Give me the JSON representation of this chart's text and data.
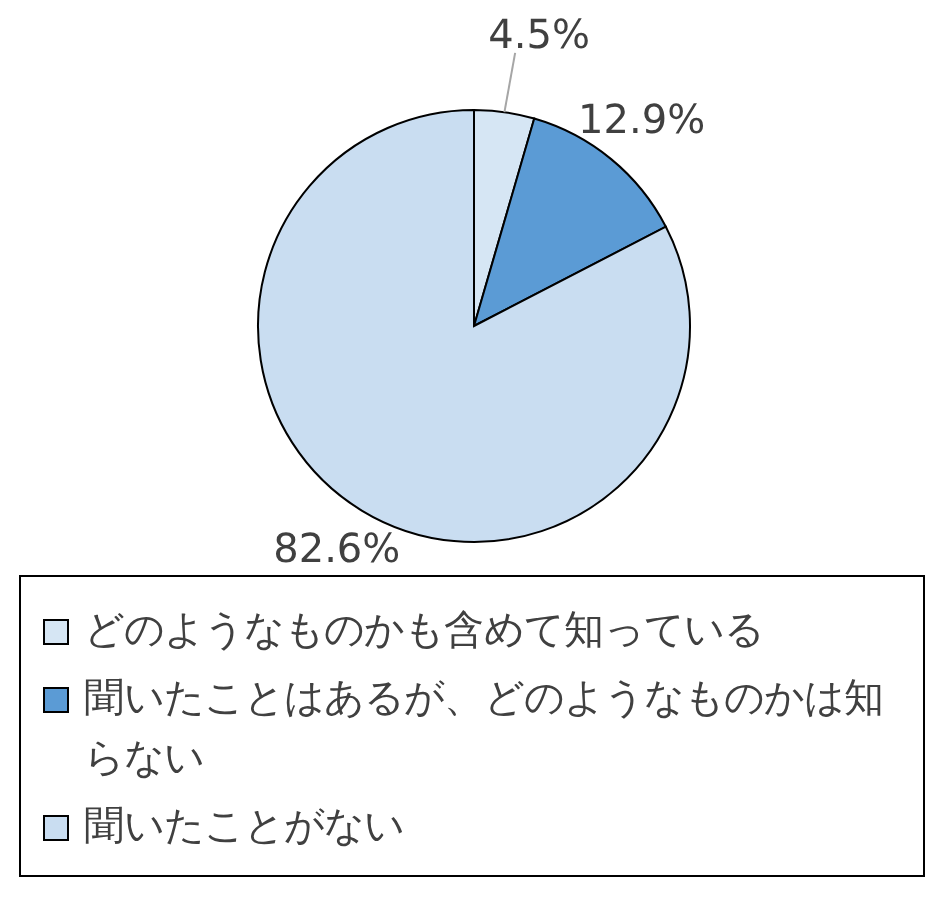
{
  "chart_data": {
    "type": "pie",
    "categories": [
      "どのようなものかも含めて知っている",
      "聞いたことはあるが、どのようなものかは知らない",
      "聞いたことがない"
    ],
    "values": [
      4.5,
      12.9,
      82.6
    ],
    "colors": [
      "#d6e6f4",
      "#5b9bd5",
      "#c9ddf1"
    ],
    "value_labels": [
      "4.5%",
      "12.9%",
      "82.6%"
    ],
    "legend": "bottom"
  }
}
